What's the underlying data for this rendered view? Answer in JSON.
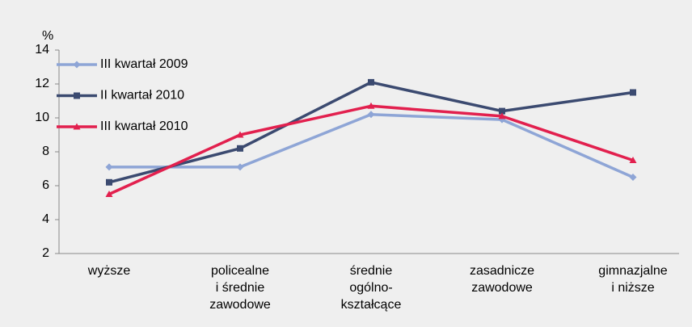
{
  "chart_data": {
    "type": "line",
    "y_unit": "%",
    "categories": [
      [
        "wyższe"
      ],
      [
        "policealne",
        "i średnie",
        "zawodowe"
      ],
      [
        "średnie",
        "ogólno-",
        "kształcące"
      ],
      [
        "zasadnicze",
        "zawodowe"
      ],
      [
        "gimnazjalne",
        "i niższe"
      ]
    ],
    "series": [
      {
        "name": "III kwartał 2009",
        "color": "#8ea5d6",
        "marker": "diamond",
        "values": [
          7.1,
          7.1,
          10.2,
          9.9,
          6.5
        ]
      },
      {
        "name": "II kwartał 2010",
        "color": "#3b4a70",
        "marker": "square",
        "values": [
          6.2,
          8.2,
          12.1,
          10.4,
          11.5
        ]
      },
      {
        "name": "III kwartał 2010",
        "color": "#e2204e",
        "marker": "triangle",
        "values": [
          5.5,
          9.0,
          10.7,
          10.1,
          7.5
        ]
      }
    ],
    "ylim": [
      2,
      14
    ],
    "yticks": [
      2,
      4,
      6,
      8,
      10,
      12,
      14
    ],
    "grid": false,
    "legend": "top-left"
  }
}
